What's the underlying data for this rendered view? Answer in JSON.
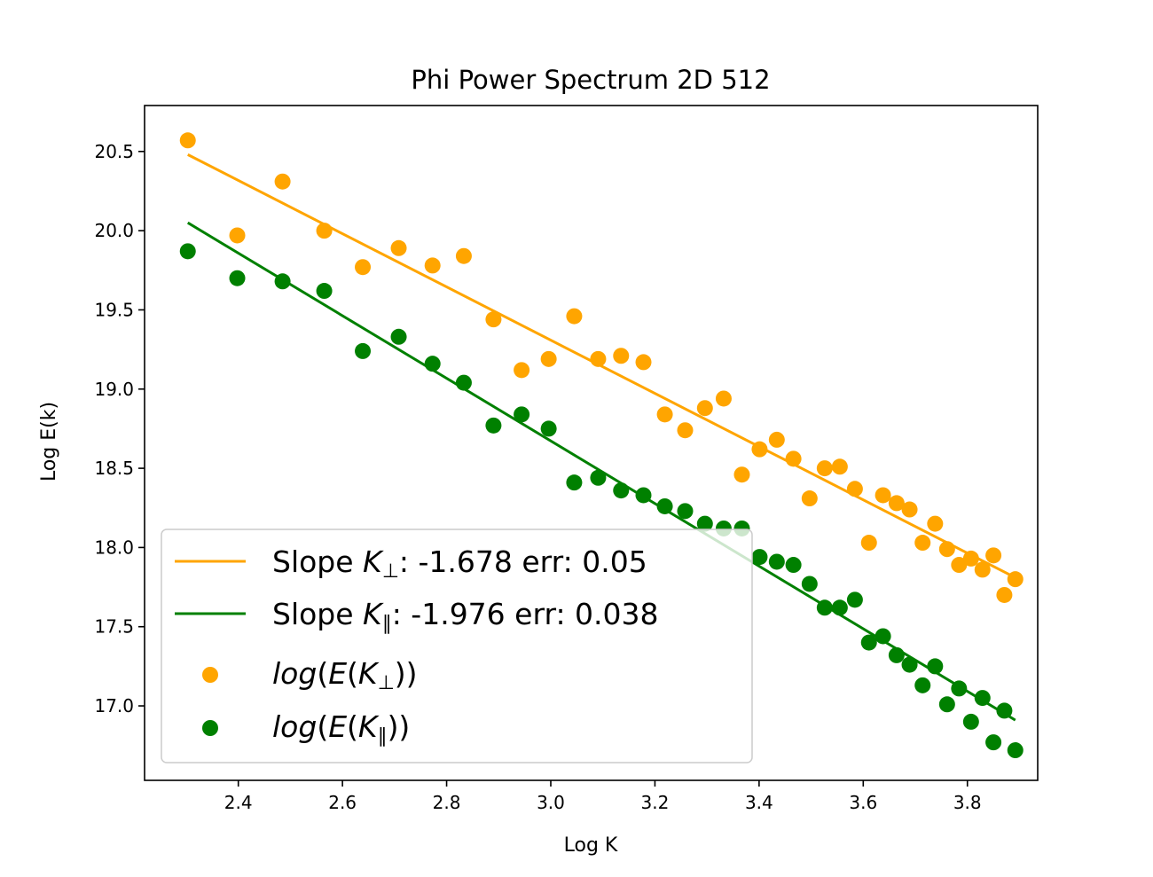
{
  "chart_data": {
    "type": "scatter",
    "title": "Phi Power Spectrum 2D 512",
    "xlabel": "Log K",
    "ylabel": "Log E(k)",
    "xlim": [
      2.22,
      3.935
    ],
    "ylim": [
      16.53,
      20.79
    ],
    "xticks": [
      2.4,
      2.6,
      2.8,
      3.0,
      3.2,
      3.4,
      3.6,
      3.8
    ],
    "xtick_labels": [
      "2.4",
      "2.6",
      "2.8",
      "3.0",
      "3.2",
      "3.4",
      "3.6",
      "3.8"
    ],
    "yticks": [
      17.0,
      17.5,
      18.0,
      18.5,
      19.0,
      19.5,
      20.0,
      20.5
    ],
    "ytick_labels": [
      "17.0",
      "17.5",
      "18.0",
      "18.5",
      "19.0",
      "19.5",
      "20.0",
      "20.5"
    ],
    "grid": false,
    "legend_position": "lower-left",
    "x": [
      2.303,
      2.398,
      2.485,
      2.565,
      2.639,
      2.708,
      2.773,
      2.833,
      2.89,
      2.944,
      2.996,
      3.045,
      3.091,
      3.135,
      3.178,
      3.219,
      3.258,
      3.296,
      3.332,
      3.367,
      3.401,
      3.434,
      3.466,
      3.497,
      3.526,
      3.555,
      3.584,
      3.611,
      3.638,
      3.664,
      3.689,
      3.714,
      3.738,
      3.761,
      3.784,
      3.807,
      3.829,
      3.85,
      3.871,
      3.892
    ],
    "series": [
      {
        "kind": "scatter",
        "name": "log(E(K⊥))",
        "label_base": "K",
        "label_sub": "⊥",
        "color": "#ffa500",
        "y": [
          20.57,
          19.97,
          20.31,
          20.0,
          19.77,
          19.89,
          19.78,
          19.84,
          19.44,
          19.12,
          19.19,
          19.46,
          19.19,
          19.21,
          19.17,
          18.84,
          18.74,
          18.88,
          18.94,
          18.46,
          18.62,
          18.68,
          18.56,
          18.31,
          18.5,
          18.51,
          18.37,
          18.03,
          18.33,
          18.28,
          18.24,
          18.03,
          18.15,
          17.99,
          17.89,
          17.93,
          17.86,
          17.95,
          17.7,
          17.8
        ]
      },
      {
        "kind": "scatter",
        "name": "log(E(K∥))",
        "label_base": "K",
        "label_sub": "∥",
        "color": "#008000",
        "y": [
          19.87,
          19.7,
          19.68,
          19.62,
          19.24,
          19.33,
          19.16,
          19.04,
          18.77,
          18.84,
          18.75,
          18.41,
          18.44,
          18.36,
          18.33,
          18.26,
          18.23,
          18.15,
          18.12,
          18.12,
          17.94,
          17.91,
          17.89,
          17.77,
          17.62,
          17.62,
          17.67,
          17.4,
          17.44,
          17.32,
          17.26,
          17.13,
          17.25,
          17.01,
          17.11,
          16.9,
          17.05,
          16.77,
          16.97,
          16.72
        ]
      }
    ],
    "fits": [
      {
        "kind": "line",
        "name": "Slope K⊥: -1.678 err: 0.05",
        "prefix": "Slope ",
        "sub": "⊥",
        "suffix": ": -1.678 err: 0.05",
        "color": "#ffa500",
        "slope": -1.678,
        "err": 0.05,
        "x": [
          2.303,
          3.892
        ],
        "y": [
          20.48,
          17.81
        ]
      },
      {
        "kind": "line",
        "name": "Slope K∥: -1.976 err: 0.038",
        "prefix": "Slope ",
        "sub": "∥",
        "suffix": ": -1.976 err: 0.038",
        "color": "#008000",
        "slope": -1.976,
        "err": 0.038,
        "x": [
          2.303,
          3.892
        ],
        "y": [
          20.05,
          16.91
        ]
      }
    ]
  }
}
